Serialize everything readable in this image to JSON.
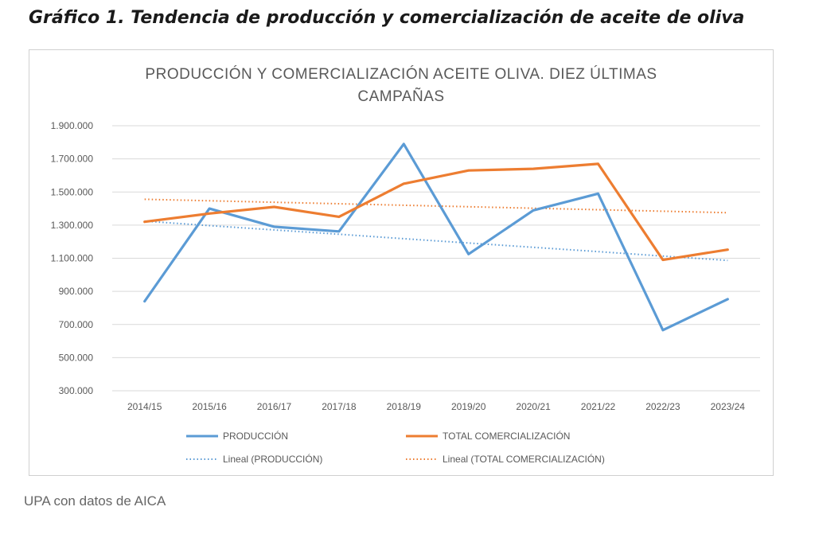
{
  "figure_title": "Gráfico 1. Tendencia de producción y comercialización de aceite de oliva",
  "source": "UPA con datos de AICA",
  "colors": {
    "produccion": "#5b9bd5",
    "comercializacion": "#ed7d31",
    "grid": "#d9d9d9",
    "text": "#595959"
  },
  "chart_data": {
    "type": "line",
    "title_lines": [
      "PRODUCCIÓN Y COMERCIALIZACIÓN ACEITE OLIVA. DIEZ ÚLTIMAS",
      "CAMPAÑAS"
    ],
    "categories": [
      "2014/15",
      "2015/16",
      "2016/17",
      "2017/18",
      "2018/19",
      "2019/20",
      "2020/21",
      "2021/22",
      "2022/23",
      "2023/24"
    ],
    "yticks": [
      "300.000",
      "500.000",
      "700.000",
      "900.000",
      "1.100.000",
      "1.300.000",
      "1.500.000",
      "1.700.000",
      "1.900.000"
    ],
    "ylim": [
      300000,
      1900000
    ],
    "grid": true,
    "legend_position": "bottom",
    "series": [
      {
        "name": "PRODUCCIÓN",
        "color": "#5b9bd5",
        "style": "solid",
        "values": [
          840000,
          1400000,
          1290000,
          1262000,
          1790000,
          1125000,
          1389000,
          1490000,
          666000,
          853000
        ]
      },
      {
        "name": "TOTAL COMERCIALIZACIÓN",
        "color": "#ed7d31",
        "style": "solid",
        "values": [
          1320000,
          1370000,
          1410000,
          1350000,
          1550000,
          1630000,
          1640000,
          1670000,
          1090000,
          1152000
        ]
      },
      {
        "name": "Lineal (PRODUCCIÓN)",
        "color": "#5b9bd5",
        "style": "dotted",
        "values": [
          1324000,
          1297000,
          1271000,
          1245000,
          1218000,
          1192000,
          1166000,
          1140000,
          1113000,
          1087000
        ]
      },
      {
        "name": "Lineal (TOTAL COMERCIALIZACIÓN)",
        "color": "#ed7d31",
        "style": "dotted",
        "values": [
          1456000,
          1447000,
          1438000,
          1429000,
          1420000,
          1411000,
          1402000,
          1393000,
          1384000,
          1375000
        ]
      }
    ]
  }
}
